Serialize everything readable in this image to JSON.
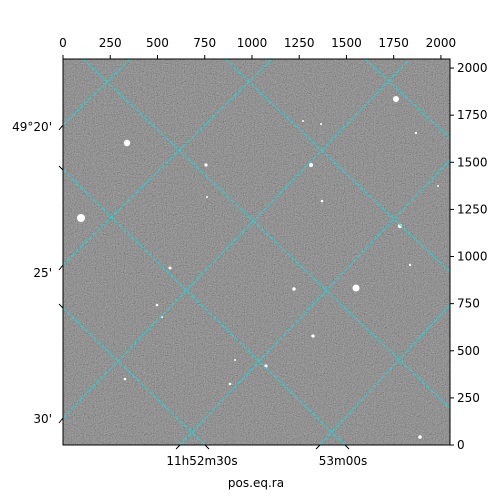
{
  "chart_data": {
    "type": "image",
    "xlim": [
      0,
      2048
    ],
    "ylim": [
      0,
      2048
    ],
    "xticks": [
      0,
      250,
      500,
      750,
      1000,
      1250,
      1500,
      1750,
      2000
    ],
    "yticks": [
      0,
      250,
      500,
      750,
      1000,
      1250,
      1500,
      1750,
      2000
    ],
    "dec_ticks": [
      "49°20'",
      "25'",
      "30'"
    ],
    "ra_ticks": [
      "11h52m30s",
      "53m00s"
    ],
    "xlabel": "pos.eq.ra",
    "grid_color": "#00e5e5"
  }
}
